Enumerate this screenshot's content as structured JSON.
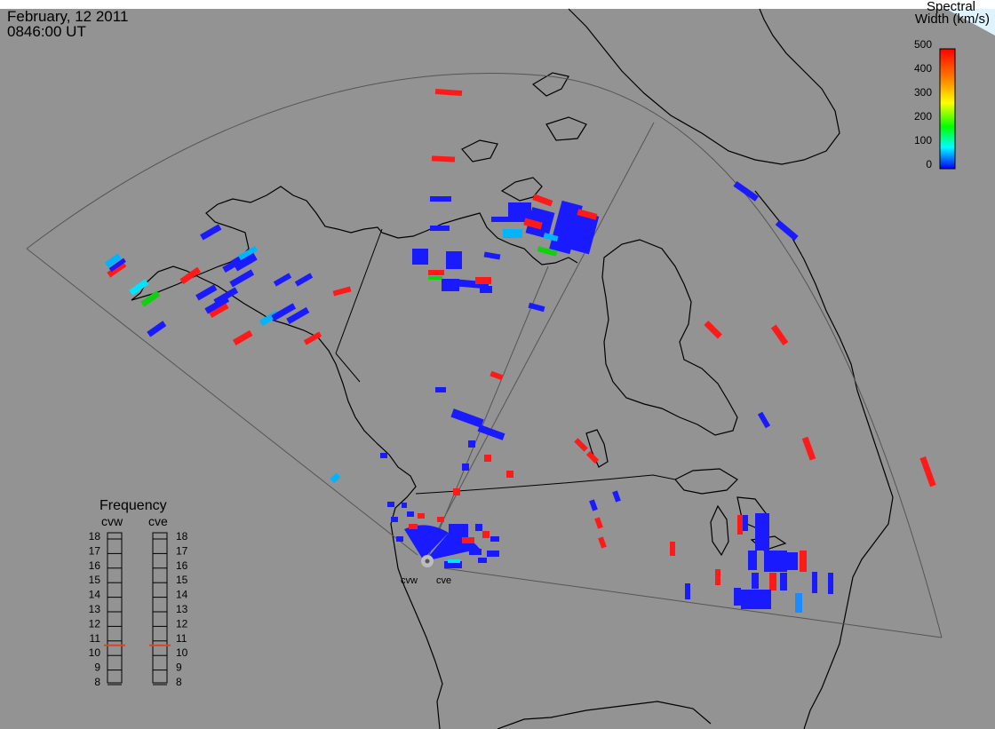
{
  "header": {
    "date": "February, 12 2011",
    "time": "0846:00 UT"
  },
  "colorbar": {
    "title_line1": "Spectral",
    "title_line2": "Width (km/s)",
    "ticks": [
      "500",
      "400",
      "300",
      "200",
      "100",
      "0"
    ]
  },
  "frequency_panel": {
    "title": "Frequency",
    "radars": [
      {
        "code": "cvw",
        "frequency_mhz": 10.7
      },
      {
        "code": "cve",
        "frequency_mhz": 10.7
      }
    ],
    "ticks": [
      "18",
      "17",
      "16",
      "15",
      "14",
      "13",
      "12",
      "11",
      "10",
      "9",
      "8"
    ]
  },
  "radar_labels": [
    "cvw",
    "cve"
  ],
  "colors": {
    "background": "#939393",
    "land_outline": "#000000",
    "fov_outline": "#555555",
    "low_width": "#1a1aff",
    "mid_low_width": "#00b4ff",
    "mid_width": "#10d010",
    "high_width": "#ff1a1a",
    "frequency_marker": "#e0451a"
  }
}
